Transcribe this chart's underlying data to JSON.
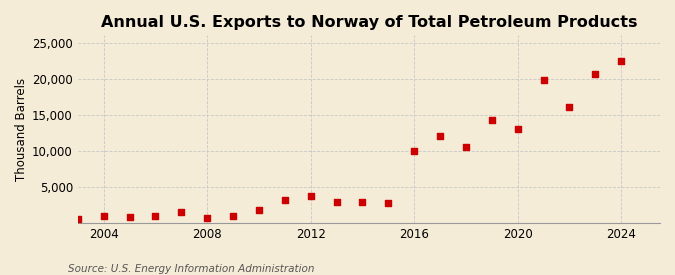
{
  "title": "Annual U.S. Exports to Norway of Total Petroleum Products",
  "ylabel": "Thousand Barrels",
  "source": "Source: U.S. Energy Information Administration",
  "background_color": "#f5ecd7",
  "years": [
    2003,
    2004,
    2005,
    2006,
    2007,
    2008,
    2009,
    2010,
    2011,
    2012,
    2013,
    2014,
    2015,
    2016,
    2017,
    2018,
    2019,
    2020,
    2021,
    2022,
    2023,
    2024
  ],
  "values": [
    500,
    900,
    800,
    1000,
    1500,
    700,
    900,
    1800,
    3200,
    3700,
    2900,
    2900,
    2800,
    10000,
    12000,
    10500,
    14200,
    13000,
    19800,
    16100,
    20600,
    22400
  ],
  "marker_color": "#cc0000",
  "marker_size": 5,
  "xlim": [
    2003.0,
    2025.5
  ],
  "ylim": [
    0,
    26000
  ],
  "yticks": [
    0,
    5000,
    10000,
    15000,
    20000,
    25000
  ],
  "xticks": [
    2004,
    2008,
    2012,
    2016,
    2020,
    2024
  ],
  "grid_color": "#c8c8c8",
  "title_fontsize": 11.5,
  "axis_fontsize": 8.5,
  "source_fontsize": 7.5
}
